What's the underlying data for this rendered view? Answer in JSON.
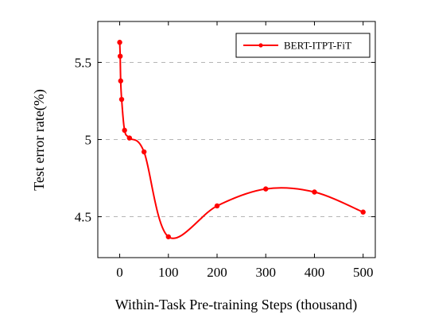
{
  "chart_data": {
    "type": "line",
    "title": "",
    "xlabel": "Within-Task Pre-training Steps (thousand)",
    "ylabel": "Test error rate(%)",
    "xlim": [
      -45,
      525
    ],
    "ylim": [
      4.235,
      5.765
    ],
    "xticks": [
      0,
      100,
      200,
      300,
      400,
      500
    ],
    "yticks": [
      4.5,
      5,
      5.5
    ],
    "xtick_labels": [
      "0",
      "100",
      "200",
      "300",
      "400",
      "500"
    ],
    "ytick_labels": [
      "4.5",
      "5",
      "5.5"
    ],
    "grid": "horizontal dashed",
    "legend_position": "top-right",
    "series": [
      {
        "name": "BERT-ITPT-FiT",
        "color": "#ff0000",
        "marker": "circle",
        "x": [
          0,
          1,
          2,
          4,
          10,
          20,
          50,
          100,
          200,
          300,
          400,
          500
        ],
        "y": [
          5.63,
          5.54,
          5.38,
          5.26,
          5.06,
          5.01,
          4.92,
          4.37,
          4.57,
          4.68,
          4.66,
          4.53
        ]
      }
    ]
  }
}
